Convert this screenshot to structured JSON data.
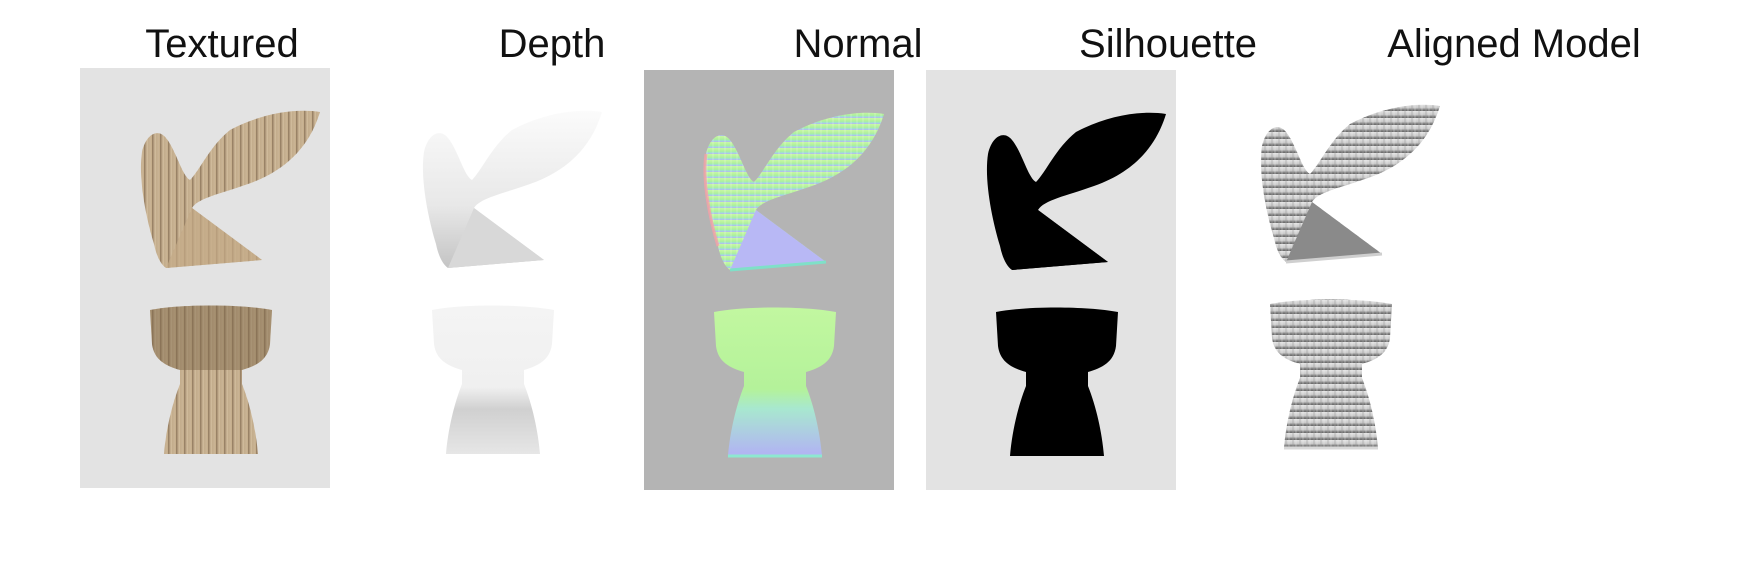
{
  "columns": [
    {
      "key": "textured",
      "title": "Textured"
    },
    {
      "key": "depth",
      "title": "Depth"
    },
    {
      "key": "normal",
      "title": "Normal"
    },
    {
      "key": "silhouette",
      "title": "Silhouette"
    },
    {
      "key": "aligned",
      "title": "Aligned Model"
    }
  ],
  "colors": {
    "panel_light": "#e3e3e3",
    "panel_normal": "#b4b4b4",
    "wood_light": "#d6c2a4",
    "wood_dark": "#8c7458",
    "depth_light": "#fafafa",
    "depth_dark": "#c8c8c8",
    "normal_green": "#b8f59a",
    "normal_blue": "#b7b7f4",
    "silhouette": "#000000",
    "aligned_light": "#e2e2e2",
    "aligned_dark": "#6f6f6f"
  }
}
